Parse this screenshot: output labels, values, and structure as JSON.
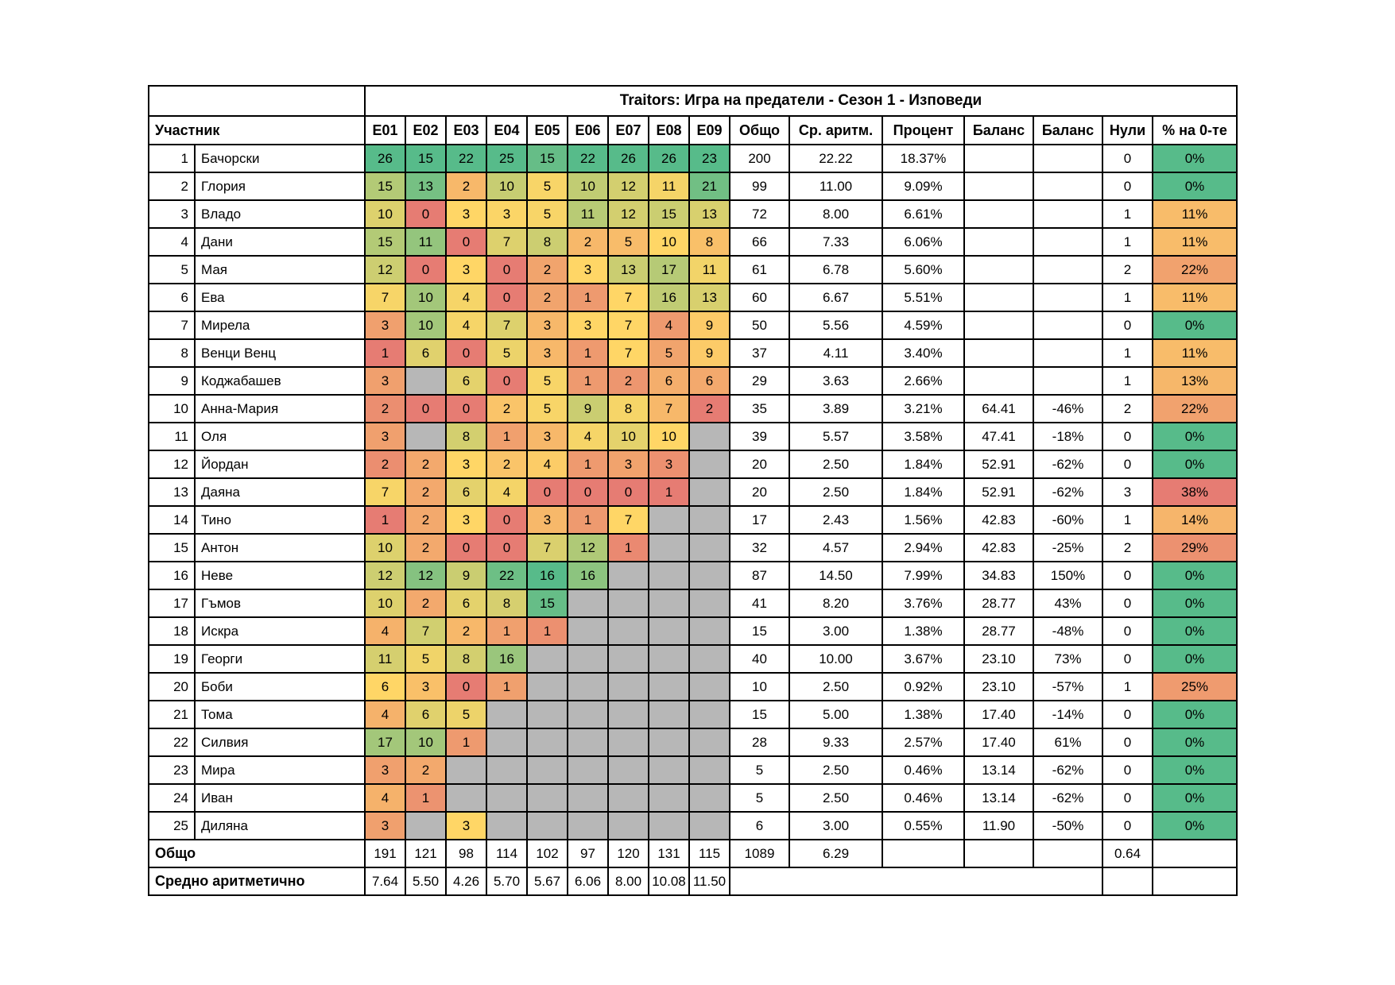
{
  "title": "Traitors: Игра на предатели - Сезон 1 - Изповеди",
  "columns": {
    "participant": "Участник",
    "episodes": [
      "E01",
      "E02",
      "E03",
      "E04",
      "E05",
      "E06",
      "E07",
      "E08",
      "E09"
    ],
    "total": "Общо",
    "average": "Ср. аритм.",
    "percent": "Процент",
    "balance1": "Баланс",
    "balance2": "Баланс",
    "zeros": "Нули",
    "zeros_percent": "% на 0-те"
  },
  "colors": {
    "scale_min_red": "#E67C73",
    "scale_mid_yellow": "#FFD666",
    "scale_max_green": "#57BB8A",
    "empty_cell_gray": "#B7B7B7",
    "border": "#000000",
    "background": "#FFFFFF"
  },
  "rows": [
    {
      "num": 1,
      "name": "Бачорски",
      "episodes": [
        26,
        15,
        22,
        25,
        15,
        22,
        26,
        26,
        23
      ],
      "total": 200,
      "average": "22.22",
      "percent": "18.37%",
      "balance1": "",
      "balance2": "",
      "zeros": 0,
      "zeros_percent": "0%"
    },
    {
      "num": 2,
      "name": "Глория",
      "episodes": [
        15,
        13,
        2,
        10,
        5,
        10,
        12,
        11,
        21
      ],
      "total": 99,
      "average": "11.00",
      "percent": "9.09%",
      "balance1": "",
      "balance2": "",
      "zeros": 0,
      "zeros_percent": "0%"
    },
    {
      "num": 3,
      "name": "Владо",
      "episodes": [
        10,
        0,
        3,
        3,
        5,
        11,
        12,
        15,
        13
      ],
      "total": 72,
      "average": "8.00",
      "percent": "6.61%",
      "balance1": "",
      "balance2": "",
      "zeros": 1,
      "zeros_percent": "11%"
    },
    {
      "num": 4,
      "name": "Дани",
      "episodes": [
        15,
        11,
        0,
        7,
        8,
        2,
        5,
        10,
        8
      ],
      "total": 66,
      "average": "7.33",
      "percent": "6.06%",
      "balance1": "",
      "balance2": "",
      "zeros": 1,
      "zeros_percent": "11%"
    },
    {
      "num": 5,
      "name": "Мая",
      "episodes": [
        12,
        0,
        3,
        0,
        2,
        3,
        13,
        17,
        11
      ],
      "total": 61,
      "average": "6.78",
      "percent": "5.60%",
      "balance1": "",
      "balance2": "",
      "zeros": 2,
      "zeros_percent": "22%"
    },
    {
      "num": 6,
      "name": "Ева",
      "episodes": [
        7,
        10,
        4,
        0,
        2,
        1,
        7,
        16,
        13
      ],
      "total": 60,
      "average": "6.67",
      "percent": "5.51%",
      "balance1": "",
      "balance2": "",
      "zeros": 1,
      "zeros_percent": "11%"
    },
    {
      "num": 7,
      "name": "Мирела",
      "episodes": [
        3,
        10,
        4,
        7,
        3,
        3,
        7,
        4,
        9
      ],
      "total": 50,
      "average": "5.56",
      "percent": "4.59%",
      "balance1": "",
      "balance2": "",
      "zeros": 0,
      "zeros_percent": "0%"
    },
    {
      "num": 8,
      "name": "Венци Венц",
      "episodes": [
        1,
        6,
        0,
        5,
        3,
        1,
        7,
        5,
        9
      ],
      "total": 37,
      "average": "4.11",
      "percent": "3.40%",
      "balance1": "",
      "balance2": "",
      "zeros": 1,
      "zeros_percent": "11%"
    },
    {
      "num": 9,
      "name": "Коджабашев",
      "episodes": [
        3,
        null,
        6,
        0,
        5,
        1,
        2,
        6,
        6
      ],
      "total": 29,
      "average": "3.63",
      "percent": "2.66%",
      "balance1": "",
      "balance2": "",
      "zeros": 1,
      "zeros_percent": "13%"
    },
    {
      "num": 10,
      "name": "Анна-Мария",
      "episodes": [
        2,
        0,
        0,
        2,
        5,
        9,
        8,
        7,
        2
      ],
      "total": 35,
      "average": "3.89",
      "percent": "3.21%",
      "balance1": "64.41",
      "balance2": "-46%",
      "zeros": 2,
      "zeros_percent": "22%"
    },
    {
      "num": 11,
      "name": "Оля",
      "episodes": [
        3,
        null,
        8,
        1,
        3,
        4,
        10,
        10,
        null
      ],
      "total": 39,
      "average": "5.57",
      "percent": "3.58%",
      "balance1": "47.41",
      "balance2": "-18%",
      "zeros": 0,
      "zeros_percent": "0%"
    },
    {
      "num": 12,
      "name": "Йордан",
      "episodes": [
        2,
        2,
        3,
        2,
        4,
        1,
        3,
        3,
        null
      ],
      "total": 20,
      "average": "2.50",
      "percent": "1.84%",
      "balance1": "52.91",
      "balance2": "-62%",
      "zeros": 0,
      "zeros_percent": "0%"
    },
    {
      "num": 13,
      "name": "Даяна",
      "episodes": [
        7,
        2,
        6,
        4,
        0,
        0,
        0,
        1,
        null
      ],
      "total": 20,
      "average": "2.50",
      "percent": "1.84%",
      "balance1": "52.91",
      "balance2": "-62%",
      "zeros": 3,
      "zeros_percent": "38%"
    },
    {
      "num": 14,
      "name": "Тино",
      "episodes": [
        1,
        2,
        3,
        0,
        3,
        1,
        7,
        null,
        null
      ],
      "total": 17,
      "average": "2.43",
      "percent": "1.56%",
      "balance1": "42.83",
      "balance2": "-60%",
      "zeros": 1,
      "zeros_percent": "14%"
    },
    {
      "num": 15,
      "name": "Антон",
      "episodes": [
        10,
        2,
        0,
        0,
        7,
        12,
        1,
        null,
        null
      ],
      "total": 32,
      "average": "4.57",
      "percent": "2.94%",
      "balance1": "42.83",
      "balance2": "-25%",
      "zeros": 2,
      "zeros_percent": "29%"
    },
    {
      "num": 16,
      "name": "Неве",
      "episodes": [
        12,
        12,
        9,
        22,
        16,
        16,
        null,
        null,
        null
      ],
      "total": 87,
      "average": "14.50",
      "percent": "7.99%",
      "balance1": "34.83",
      "balance2": "150%",
      "zeros": 0,
      "zeros_percent": "0%"
    },
    {
      "num": 17,
      "name": "Гъмов",
      "episodes": [
        10,
        2,
        6,
        8,
        15,
        null,
        null,
        null,
        null
      ],
      "total": 41,
      "average": "8.20",
      "percent": "3.76%",
      "balance1": "28.77",
      "balance2": "43%",
      "zeros": 0,
      "zeros_percent": "0%"
    },
    {
      "num": 18,
      "name": "Искра",
      "episodes": [
        4,
        7,
        2,
        1,
        1,
        null,
        null,
        null,
        null
      ],
      "total": 15,
      "average": "3.00",
      "percent": "1.38%",
      "balance1": "28.77",
      "balance2": "-48%",
      "zeros": 0,
      "zeros_percent": "0%"
    },
    {
      "num": 19,
      "name": "Георги",
      "episodes": [
        11,
        5,
        8,
        16,
        null,
        null,
        null,
        null,
        null
      ],
      "total": 40,
      "average": "10.00",
      "percent": "3.67%",
      "balance1": "23.10",
      "balance2": "73%",
      "zeros": 0,
      "zeros_percent": "0%"
    },
    {
      "num": 20,
      "name": "Боби",
      "episodes": [
        6,
        3,
        0,
        1,
        null,
        null,
        null,
        null,
        null
      ],
      "total": 10,
      "average": "2.50",
      "percent": "0.92%",
      "balance1": "23.10",
      "balance2": "-57%",
      "zeros": 1,
      "zeros_percent": "25%"
    },
    {
      "num": 21,
      "name": "Тома",
      "episodes": [
        4,
        6,
        5,
        null,
        null,
        null,
        null,
        null,
        null
      ],
      "total": 15,
      "average": "5.00",
      "percent": "1.38%",
      "balance1": "17.40",
      "balance2": "-14%",
      "zeros": 0,
      "zeros_percent": "0%"
    },
    {
      "num": 22,
      "name": "Силвия",
      "episodes": [
        17,
        10,
        1,
        null,
        null,
        null,
        null,
        null,
        null
      ],
      "total": 28,
      "average": "9.33",
      "percent": "2.57%",
      "balance1": "17.40",
      "balance2": "61%",
      "zeros": 0,
      "zeros_percent": "0%"
    },
    {
      "num": 23,
      "name": "Мира",
      "episodes": [
        3,
        2,
        null,
        null,
        null,
        null,
        null,
        null,
        null
      ],
      "total": 5,
      "average": "2.50",
      "percent": "0.46%",
      "balance1": "13.14",
      "balance2": "-62%",
      "zeros": 0,
      "zeros_percent": "0%"
    },
    {
      "num": 24,
      "name": "Иван",
      "episodes": [
        4,
        1,
        null,
        null,
        null,
        null,
        null,
        null,
        null
      ],
      "total": 5,
      "average": "2.50",
      "percent": "0.46%",
      "balance1": "13.14",
      "balance2": "-62%",
      "zeros": 0,
      "zeros_percent": "0%"
    },
    {
      "num": 25,
      "name": "Диляна",
      "episodes": [
        3,
        null,
        3,
        null,
        null,
        null,
        null,
        null,
        null
      ],
      "total": 6,
      "average": "3.00",
      "percent": "0.55%",
      "balance1": "11.90",
      "balance2": "-50%",
      "zeros": 0,
      "zeros_percent": "0%"
    }
  ],
  "footer": {
    "total_row": {
      "label": "Общо",
      "episodes": [
        191,
        121,
        98,
        114,
        102,
        97,
        120,
        131,
        115
      ],
      "total": 1089,
      "average": "6.29",
      "zeros": "0.64"
    },
    "average_row": {
      "label": "Средно аритметично",
      "episodes": [
        "7.64",
        "5.50",
        "4.26",
        "5.70",
        "5.67",
        "6.06",
        "8.00",
        "10.08",
        "11.50"
      ]
    }
  }
}
